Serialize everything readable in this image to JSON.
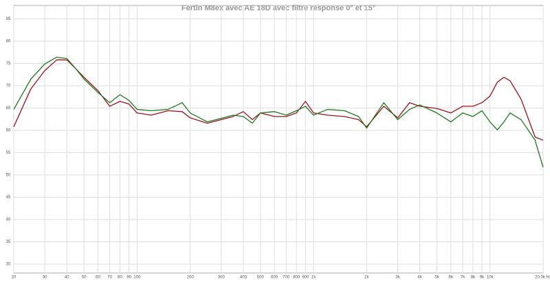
{
  "chart_data": {
    "type": "line",
    "title": "Fertin M8ex avec AE 18D avec filtre response 0° et 15°",
    "x": [
      20,
      25,
      30,
      35,
      40,
      45,
      50,
      60,
      70,
      80,
      90,
      100,
      120,
      150,
      180,
      200,
      250,
      300,
      350,
      400,
      450,
      500,
      600,
      700,
      800,
      900,
      1000,
      1200,
      1500,
      1800,
      2000,
      2500,
      3000,
      3500,
      4000,
      5000,
      6000,
      7000,
      8000,
      9000,
      10000,
      11000,
      12000,
      13000,
      15000,
      18000,
      20000
    ],
    "series": [
      {
        "color": "#a01018",
        "values": [
          60.8,
          69.3,
          73.4,
          75.8,
          75.8,
          73.8,
          71.9,
          68.9,
          65.4,
          66.5,
          65.9,
          63.9,
          63.4,
          64.4,
          64.2,
          62.8,
          61.6,
          62.4,
          63.1,
          64.2,
          62.4,
          63.9,
          63.1,
          63.1,
          63.9,
          66.5,
          63.9,
          63.4,
          63.1,
          62.4,
          60.8,
          65.4,
          62.8,
          66.2,
          65.4,
          64.9,
          63.9,
          65.4,
          65.4,
          66.2,
          67.7,
          70.8,
          71.9,
          71.1,
          67.0,
          58.5,
          57.8
        ]
      },
      {
        "color": "#1a7a1a",
        "values": [
          64.7,
          71.5,
          74.9,
          76.4,
          76.1,
          73.8,
          71.5,
          68.5,
          66.2,
          68.0,
          66.7,
          64.7,
          64.4,
          64.7,
          66.2,
          63.9,
          61.9,
          62.7,
          63.4,
          63.1,
          61.6,
          63.9,
          64.2,
          63.4,
          64.4,
          65.4,
          63.4,
          64.7,
          64.4,
          63.1,
          60.5,
          66.2,
          62.4,
          64.7,
          65.7,
          63.9,
          61.9,
          63.9,
          63.1,
          64.4,
          61.9,
          60.1,
          61.9,
          63.9,
          62.4,
          57.8,
          51.7
        ]
      }
    ],
    "xlim": [
      20,
      20000
    ],
    "xscale": "log",
    "xticks": [
      20,
      30,
      40,
      50,
      60,
      70,
      80,
      90,
      100,
      200,
      300,
      400,
      500,
      600,
      700,
      800,
      900,
      {
        "value": 1000,
        "label": "1k"
      },
      {
        "value": 2000,
        "label": "2k"
      },
      {
        "value": 3000,
        "label": "3k"
      },
      {
        "value": 4000,
        "label": "4k"
      },
      {
        "value": 5000,
        "label": "5k"
      },
      {
        "value": 6000,
        "label": "6k"
      },
      {
        "value": 7000,
        "label": "7k"
      },
      {
        "value": 8000,
        "label": "8k"
      },
      {
        "value": 9000,
        "label": "9k"
      },
      {
        "value": 10000,
        "label": "10k"
      },
      {
        "value": 20000,
        "label": "20.0k Hz"
      }
    ],
    "ylim": [
      28,
      88
    ],
    "yticks": [
      30,
      35,
      40,
      45,
      50,
      55,
      60,
      65,
      70,
      75,
      80,
      85
    ],
    "grid": true
  }
}
